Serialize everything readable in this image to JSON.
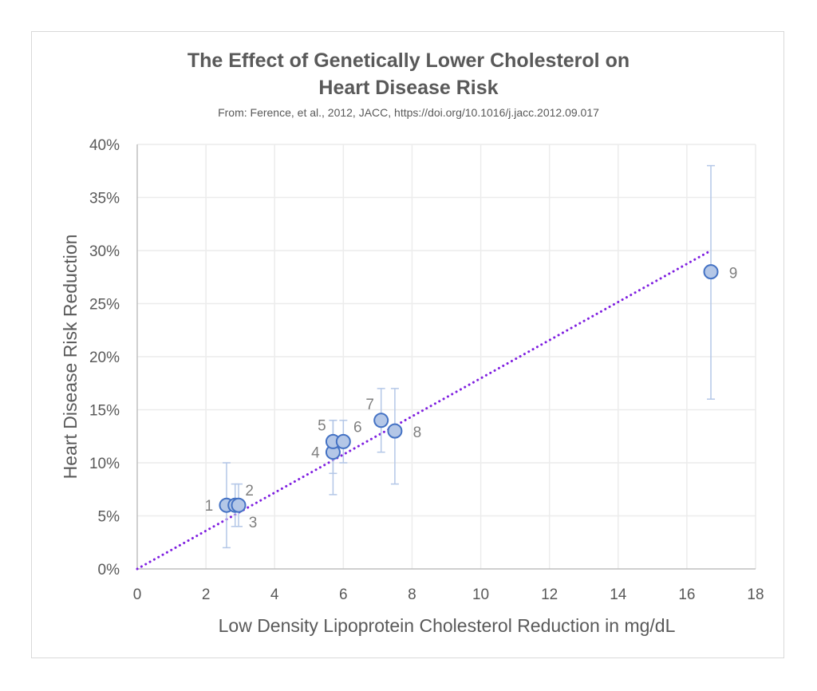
{
  "chart_data": {
    "type": "scatter",
    "title_line1": "The Effect of Genetically Lower Cholesterol on",
    "title_line2": "Heart Disease Risk",
    "subtitle": "From: Ference, et al., 2012, JACC, https://doi.org/10.1016/j.jacc.2012.09.017",
    "xlabel": "Low Density Lipoprotein Cholesterol Reduction in mg/dL",
    "ylabel": "Heart Disease Risk Reduction",
    "xlim": [
      0,
      18
    ],
    "ylim": [
      0,
      40
    ],
    "x_ticks": [
      0,
      2,
      4,
      6,
      8,
      10,
      12,
      14,
      16,
      18
    ],
    "x_tick_labels": [
      "0",
      "2",
      "4",
      "6",
      "8",
      "10",
      "12",
      "14",
      "16",
      "18"
    ],
    "y_ticks": [
      0,
      5,
      10,
      15,
      20,
      25,
      30,
      35,
      40
    ],
    "y_tick_labels": [
      "0%",
      "5%",
      "10%",
      "15%",
      "20%",
      "25%",
      "30%",
      "35%",
      "40%"
    ],
    "grid": true,
    "points": [
      {
        "label": "1",
        "x": 2.6,
        "y": 6,
        "err_low": 2,
        "err_high": 10,
        "label_pos": "left"
      },
      {
        "label": "2",
        "x": 2.85,
        "y": 6,
        "err_low": 4,
        "err_high": 8,
        "label_pos": "upper-right"
      },
      {
        "label": "3",
        "x": 2.95,
        "y": 6,
        "err_low": 4,
        "err_high": 8,
        "label_pos": "lower-right"
      },
      {
        "label": "4",
        "x": 5.7,
        "y": 11,
        "err_low": 7,
        "err_high": 14,
        "label_pos": "left"
      },
      {
        "label": "5",
        "x": 5.7,
        "y": 12,
        "err_low": 9,
        "err_high": 14,
        "label_pos": "upper-left"
      },
      {
        "label": "6",
        "x": 6.0,
        "y": 12,
        "err_low": 10,
        "err_high": 14,
        "label_pos": "upper-right"
      },
      {
        "label": "7",
        "x": 7.1,
        "y": 14,
        "err_low": 11,
        "err_high": 17,
        "label_pos": "upper-left"
      },
      {
        "label": "8",
        "x": 7.5,
        "y": 13,
        "err_low": 8,
        "err_high": 17,
        "label_pos": "right"
      },
      {
        "label": "9",
        "x": 16.7,
        "y": 28,
        "err_low": 16,
        "err_high": 38,
        "label_pos": "right"
      }
    ],
    "trendline": {
      "type": "linear",
      "style": "dotted",
      "x": [
        0,
        16.7
      ],
      "y": [
        0,
        30
      ]
    },
    "colors": {
      "marker_fill": "#b4c7e7",
      "marker_stroke": "#4472c4",
      "error_bar": "#b4c7e7",
      "trendline": "#7f1fe0",
      "grid": "#ececec",
      "axis": "#bfbfbf",
      "text": "#595959",
      "point_label": "#7f7f7f"
    }
  }
}
